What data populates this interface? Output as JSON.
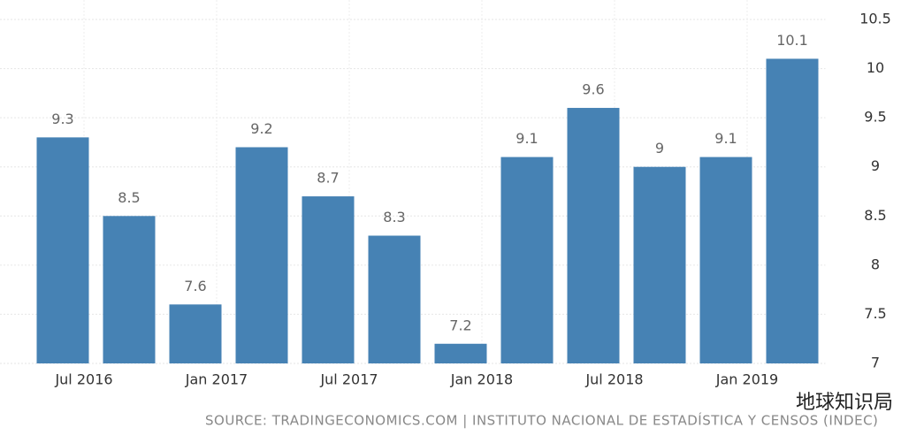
{
  "chart_data": {
    "type": "bar",
    "categories": [
      "Jul 2016",
      null,
      "Jan 2017",
      null,
      "Jul 2017",
      null,
      "Jan 2018",
      null,
      "Jul 2018",
      null,
      "Jan 2019",
      null
    ],
    "values": [
      9.3,
      8.5,
      7.6,
      9.2,
      8.7,
      8.3,
      7.2,
      9.1,
      9.6,
      9,
      9.1,
      10.1
    ],
    "color": "#4682b4",
    "ylim": [
      7,
      10.5
    ],
    "yticks": [
      7,
      7.5,
      8,
      8.5,
      9,
      9.5,
      10,
      10.5
    ],
    "grid": true,
    "source": "SOURCE: TRADINGECONOMICS.COM | INSTITUTO NACIONAL DE ESTADÍSTICA Y CENSOS (INDEC)",
    "watermark": "地球知识局"
  }
}
